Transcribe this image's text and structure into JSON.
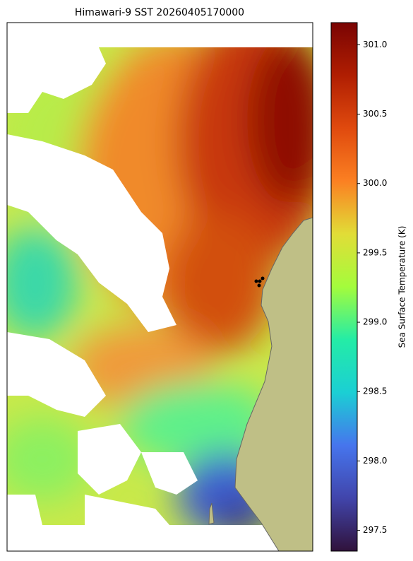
{
  "chart_data": {
    "type": "map",
    "title": "Himawari-9 SST 20260405170000",
    "colorbar_label": "Sea Surface Temperature (K)",
    "clim": [
      297.35,
      301.16
    ],
    "cticks": [
      297.5,
      {
        "value": 298,
        "label": "298.0"
      },
      298.5,
      {
        "value": 299,
        "label": "299.0"
      },
      299.5,
      {
        "value": 300,
        "label": "300.0"
      },
      300.5,
      {
        "value": 301,
        "label": "301.0"
      }
    ]
  }
}
